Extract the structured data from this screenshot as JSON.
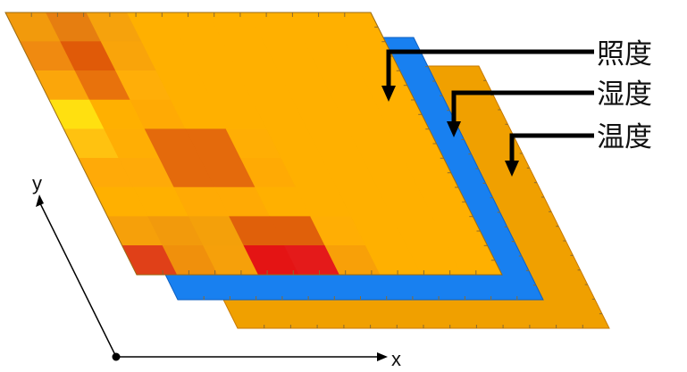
{
  "layers": {
    "illuminance": {
      "label": "照度",
      "color": "#ffb000"
    },
    "humidity": {
      "label": "湿度",
      "color": "#1880f0"
    },
    "temperature": {
      "label": "温度",
      "color": "#f0a000"
    }
  },
  "axes": {
    "x_label": "x",
    "y_label": "y"
  },
  "heatmap": {
    "rows": 9,
    "cols": 9,
    "colors": [
      [
        "#f29a0c",
        "#e67e10",
        "#f6a20c",
        "#ffb000",
        "#ffb000",
        "#ffb000",
        "#ffb000",
        "#ffb000",
        "#ffb000"
      ],
      [
        "#f08a10",
        "#e05a08",
        "#f9a40a",
        "#ffb000",
        "#ffb000",
        "#ffb000",
        "#ffb000",
        "#ffb000",
        "#ffb000"
      ],
      [
        "#fba60a",
        "#e8720c",
        "#ffae08",
        "#ffb000",
        "#ffb000",
        "#ffb000",
        "#ffb000",
        "#ffb000",
        "#ffb000"
      ],
      [
        "#ffe010",
        "#ffb000",
        "#ffaa04",
        "#ffb000",
        "#ffb000",
        "#ffb000",
        "#ffb000",
        "#ffb000",
        "#ffb000"
      ],
      [
        "#ffc210",
        "#ffae04",
        "#e46a0c",
        "#e46a0c",
        "#ffae04",
        "#ffb000",
        "#ffb000",
        "#ffb000",
        "#ffb000"
      ],
      [
        "#ffaa08",
        "#ffaa08",
        "#e46a0c",
        "#e46a0c",
        "#ffaa04",
        "#ffb000",
        "#ffb000",
        "#ffb000",
        "#ffb000"
      ],
      [
        "#ffb000",
        "#ffb000",
        "#ffaa04",
        "#ffaa04",
        "#ffb000",
        "#ffb000",
        "#ffb000",
        "#ffb000",
        "#ffb000"
      ],
      [
        "#f6a00a",
        "#f29a0c",
        "#f4a00a",
        "#e0600a",
        "#e0600a",
        "#ffae04",
        "#ffb000",
        "#ffb000",
        "#ffb000"
      ],
      [
        "#e04018",
        "#f0900c",
        "#f6a00a",
        "#e41414",
        "#e41a1a",
        "#f8a008",
        "#ffb000",
        "#ffb000",
        "#ffb000"
      ]
    ]
  }
}
